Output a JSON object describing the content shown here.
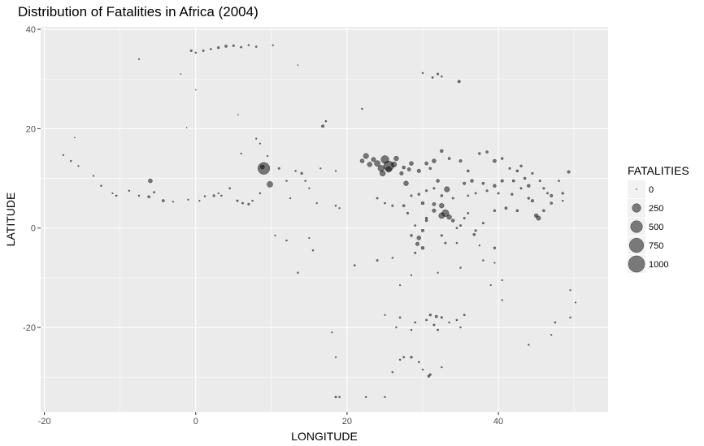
{
  "chart_data": {
    "type": "scatter",
    "title": "Distribution of Fatalities in Africa (2004)",
    "xlabel": "LONGITUDE",
    "ylabel": "LATITUDE",
    "xlim": [
      -20.5,
      54.5
    ],
    "ylim": [
      -37,
      40.5
    ],
    "x_ticks": [
      -20,
      0,
      20,
      40
    ],
    "y_ticks": [
      -20,
      0,
      20,
      40
    ],
    "grid": true,
    "legend": {
      "title": "FATALITIES",
      "placement": "right",
      "entries": [
        {
          "label": "0",
          "value": 0
        },
        {
          "label": "250",
          "value": 250
        },
        {
          "label": "500",
          "value": 500
        },
        {
          "label": "750",
          "value": 750
        },
        {
          "label": "1000",
          "value": 1000
        }
      ]
    },
    "points": [
      [
        1.0,
        35.7,
        5
      ],
      [
        2.0,
        36.0,
        3
      ],
      [
        3.0,
        36.3,
        8
      ],
      [
        4.0,
        36.6,
        12
      ],
      [
        5.0,
        36.7,
        6
      ],
      [
        6.0,
        36.4,
        4
      ],
      [
        7.0,
        36.8,
        2
      ],
      [
        8.0,
        36.5,
        3
      ],
      [
        10.2,
        36.8,
        1
      ],
      [
        -0.6,
        35.7,
        6
      ],
      [
        0.0,
        35.3,
        2
      ],
      [
        -7.5,
        34.0,
        1
      ],
      [
        -2.0,
        31.0,
        0
      ],
      [
        13.5,
        32.8,
        0
      ],
      [
        0.0,
        27.8,
        0
      ],
      [
        5.6,
        22.8,
        0
      ],
      [
        16.8,
        20.5,
        15
      ],
      [
        17.2,
        21.5,
        3
      ],
      [
        -16.0,
        18.2,
        0
      ],
      [
        -1.2,
        20.2,
        0
      ],
      [
        -17.5,
        14.7,
        1
      ],
      [
        -16.5,
        13.5,
        2
      ],
      [
        -15.5,
        12.5,
        1
      ],
      [
        -13.5,
        10.5,
        1
      ],
      [
        -12.5,
        8.5,
        2
      ],
      [
        -11.0,
        7.0,
        1
      ],
      [
        -10.5,
        6.5,
        3
      ],
      [
        -8.8,
        7.5,
        2
      ],
      [
        -7.5,
        6.5,
        2
      ],
      [
        -6.0,
        9.5,
        40
      ],
      [
        -5.5,
        7.2,
        4
      ],
      [
        -4.3,
        5.5,
        12
      ],
      [
        -6.2,
        6.3,
        10
      ],
      [
        -3.0,
        5.3,
        1
      ],
      [
        -1.0,
        5.7,
        1
      ],
      [
        0.5,
        5.5,
        1
      ],
      [
        1.2,
        6.4,
        2
      ],
      [
        2.4,
        6.5,
        6
      ],
      [
        3.0,
        7.0,
        1
      ],
      [
        3.4,
        6.5,
        2
      ],
      [
        4.5,
        8.0,
        3
      ],
      [
        5.5,
        5.5,
        5
      ],
      [
        6.2,
        5.0,
        4
      ],
      [
        7.0,
        4.8,
        6
      ],
      [
        7.5,
        5.5,
        2
      ],
      [
        8.5,
        7.0,
        2
      ],
      [
        9.0,
        12.0,
        500
      ],
      [
        8.8,
        12.3,
        45
      ],
      [
        9.8,
        8.8,
        100
      ],
      [
        11.0,
        12.0,
        5
      ],
      [
        13.2,
        11.5,
        2
      ],
      [
        14.0,
        11.0,
        8
      ],
      [
        12.0,
        9.5,
        2
      ],
      [
        14.5,
        9.5,
        2
      ],
      [
        15.0,
        8.0,
        1
      ],
      [
        8.0,
        18.0,
        1
      ],
      [
        8.5,
        17.0,
        1
      ],
      [
        6.0,
        15.0,
        1
      ],
      [
        9.5,
        14.5,
        1
      ],
      [
        16.5,
        12.0,
        1
      ],
      [
        18.5,
        11.5,
        1
      ],
      [
        18.5,
        4.5,
        2
      ],
      [
        16.0,
        5.0,
        1
      ],
      [
        19.0,
        4.0,
        1
      ],
      [
        15.5,
        -4.5,
        2
      ],
      [
        12.5,
        6.0,
        1
      ],
      [
        10.5,
        -1.5,
        1
      ],
      [
        12.0,
        -2.5,
        2
      ],
      [
        13.5,
        -9.0,
        2
      ],
      [
        15.0,
        -2.0,
        1
      ],
      [
        21.0,
        -7.5,
        3
      ],
      [
        24.0,
        -6.5,
        5
      ],
      [
        26.0,
        -6.0,
        2
      ],
      [
        27.0,
        -11.5,
        1
      ],
      [
        28.5,
        -9.5,
        1
      ],
      [
        22.5,
        14.5,
        80
      ],
      [
        22.0,
        13.5,
        40
      ],
      [
        23.0,
        12.8,
        60
      ],
      [
        24.0,
        13.0,
        100
      ],
      [
        24.5,
        12.0,
        120
      ],
      [
        25.0,
        13.8,
        200
      ],
      [
        25.5,
        12.5,
        350
      ],
      [
        24.7,
        11.0,
        90
      ],
      [
        25.5,
        11.8,
        100
      ],
      [
        26.2,
        12.8,
        80
      ],
      [
        23.5,
        13.8,
        50
      ],
      [
        27.2,
        11.0,
        30
      ],
      [
        28.2,
        11.8,
        25
      ],
      [
        28.5,
        13.0,
        40
      ],
      [
        27.5,
        12.2,
        20
      ],
      [
        26.5,
        14.0,
        60
      ],
      [
        27.8,
        9.0,
        60
      ],
      [
        29.5,
        11.5,
        30
      ],
      [
        30.5,
        13.0,
        25
      ],
      [
        31.5,
        13.5,
        40
      ],
      [
        32.5,
        15.5,
        20
      ],
      [
        33.5,
        14.0,
        10
      ],
      [
        35.0,
        13.5,
        15
      ],
      [
        36.0,
        11.5,
        10
      ],
      [
        37.5,
        15.0,
        8
      ],
      [
        38.5,
        15.3,
        10
      ],
      [
        39.5,
        13.5,
        25
      ],
      [
        40.5,
        14.0,
        8
      ],
      [
        31.0,
        12.0,
        10
      ],
      [
        32.0,
        9.5,
        20
      ],
      [
        31.5,
        4.8,
        25
      ],
      [
        32.5,
        4.5,
        60
      ],
      [
        33.0,
        3.0,
        150
      ],
      [
        32.5,
        2.5,
        100
      ],
      [
        33.5,
        2.2,
        60
      ],
      [
        34.0,
        1.5,
        20
      ],
      [
        31.5,
        3.5,
        30
      ],
      [
        30.5,
        1.5,
        10
      ],
      [
        30.0,
        -0.5,
        15
      ],
      [
        29.5,
        -2.0,
        40
      ],
      [
        29.3,
        -3.2,
        30
      ],
      [
        30.0,
        -4.0,
        20
      ],
      [
        28.5,
        -1.5,
        10
      ],
      [
        29.0,
        -5.0,
        5
      ],
      [
        33.2,
        7.8,
        80
      ],
      [
        35.5,
        9.0,
        15
      ],
      [
        36.5,
        9.5,
        20
      ],
      [
        38.0,
        9.0,
        10
      ],
      [
        39.5,
        8.5,
        20
      ],
      [
        40.5,
        9.5,
        15
      ],
      [
        42.0,
        9.5,
        12
      ],
      [
        43.5,
        10.0,
        10
      ],
      [
        44.0,
        8.5,
        20
      ],
      [
        44.5,
        5.5,
        15
      ],
      [
        45.0,
        2.5,
        35
      ],
      [
        45.3,
        2.0,
        50
      ],
      [
        46.0,
        3.5,
        10
      ],
      [
        47.0,
        5.0,
        10
      ],
      [
        48.5,
        7.0,
        8
      ],
      [
        49.3,
        11.3,
        15
      ],
      [
        47.0,
        6.5,
        15
      ],
      [
        44.0,
        6.0,
        8
      ],
      [
        42.5,
        3.5,
        10
      ],
      [
        41.0,
        4.0,
        12
      ],
      [
        39.5,
        3.5,
        8
      ],
      [
        38.0,
        1.0,
        5
      ],
      [
        37.0,
        -0.5,
        6
      ],
      [
        36.8,
        -1.3,
        10
      ],
      [
        35.0,
        0.5,
        5
      ],
      [
        39.5,
        -4.0,
        8
      ],
      [
        36.0,
        3.0,
        4
      ],
      [
        35.5,
        2.0,
        5
      ],
      [
        34.5,
        0.0,
        4
      ],
      [
        34.5,
        -3.0,
        2
      ],
      [
        33.0,
        -3.0,
        5
      ],
      [
        32.5,
        -1.5,
        6
      ],
      [
        30.5,
        2.0,
        8
      ],
      [
        29.0,
        0.5,
        4
      ],
      [
        28.0,
        3.0,
        6
      ],
      [
        27.5,
        4.5,
        10
      ],
      [
        26.0,
        4.5,
        5
      ],
      [
        25.0,
        5.0,
        3
      ],
      [
        24.0,
        6.0,
        4
      ],
      [
        28.5,
        6.5,
        5
      ],
      [
        29.5,
        6.8,
        8
      ],
      [
        30.5,
        7.5,
        6
      ],
      [
        31.5,
        8.0,
        5
      ],
      [
        32.5,
        6.5,
        10
      ],
      [
        34.0,
        6.0,
        5
      ],
      [
        30.0,
        5.0,
        20
      ],
      [
        31.8,
        -17.8,
        12
      ],
      [
        31.0,
        -17.5,
        8
      ],
      [
        32.5,
        -18.0,
        6
      ],
      [
        30.5,
        -18.5,
        4
      ],
      [
        31.5,
        -19.5,
        5
      ],
      [
        29.0,
        -19.0,
        3
      ],
      [
        28.5,
        -20.5,
        2
      ],
      [
        32.0,
        -20.5,
        4
      ],
      [
        33.5,
        -19.0,
        2
      ],
      [
        34.5,
        -18.5,
        3
      ],
      [
        35.5,
        -17.5,
        4
      ],
      [
        35.0,
        -20.0,
        2
      ],
      [
        27.0,
        -18.0,
        3
      ],
      [
        26.5,
        -20.0,
        2
      ],
      [
        25.0,
        -17.5,
        1
      ],
      [
        28.5,
        -26.0,
        8
      ],
      [
        27.5,
        -26.0,
        4
      ],
      [
        30.0,
        -28.5,
        2
      ],
      [
        30.8,
        -29.8,
        10
      ],
      [
        31.0,
        -29.5,
        6
      ],
      [
        29.5,
        -27.0,
        3
      ],
      [
        32.5,
        -28.0,
        2
      ],
      [
        27.0,
        -26.5,
        2
      ],
      [
        26.0,
        -29.0,
        2
      ],
      [
        18.5,
        -34.0,
        5
      ],
      [
        19.0,
        -34.0,
        3
      ],
      [
        22.5,
        -34.0,
        2
      ],
      [
        25.0,
        -34.0,
        2
      ],
      [
        18.0,
        -21.0,
        1
      ],
      [
        18.5,
        -26.0,
        1
      ],
      [
        34.8,
        29.5,
        15
      ],
      [
        32.0,
        31.0,
        6
      ],
      [
        31.3,
        30.3,
        4
      ],
      [
        30.0,
        31.2,
        2
      ],
      [
        32.5,
        30.5,
        2
      ],
      [
        22.0,
        24.0,
        2
      ],
      [
        47.5,
        -19.0,
        3
      ],
      [
        49.5,
        -18.0,
        2
      ],
      [
        50.2,
        -15.0,
        1
      ],
      [
        49.5,
        -12.5,
        1
      ],
      [
        44.0,
        -23.5,
        2
      ],
      [
        47.0,
        -21.5,
        1
      ],
      [
        40.5,
        -14.5,
        1
      ],
      [
        39.0,
        -11.5,
        1
      ],
      [
        40.5,
        -10.5,
        1
      ],
      [
        38.0,
        -6.5,
        2
      ],
      [
        39.5,
        -7.0,
        1
      ],
      [
        37.5,
        -3.5,
        1
      ],
      [
        35.0,
        -8.0,
        2
      ],
      [
        32.0,
        -9.0,
        1
      ],
      [
        43.0,
        12.5,
        8
      ],
      [
        44.5,
        11.0,
        6
      ],
      [
        42.5,
        11.5,
        10
      ],
      [
        41.5,
        12.0,
        5
      ],
      [
        45.5,
        9.5,
        5
      ],
      [
        46.5,
        7.0,
        4
      ],
      [
        48.0,
        9.5,
        3
      ],
      [
        48.5,
        5.5,
        2
      ],
      [
        46.0,
        8.0,
        6
      ],
      [
        43.0,
        8.0,
        5
      ],
      [
        41.8,
        6.8,
        8
      ],
      [
        40.0,
        7.0,
        5
      ],
      [
        38.5,
        7.5,
        6
      ],
      [
        37.0,
        7.0,
        4
      ],
      [
        36.0,
        6.5,
        3
      ]
    ]
  }
}
